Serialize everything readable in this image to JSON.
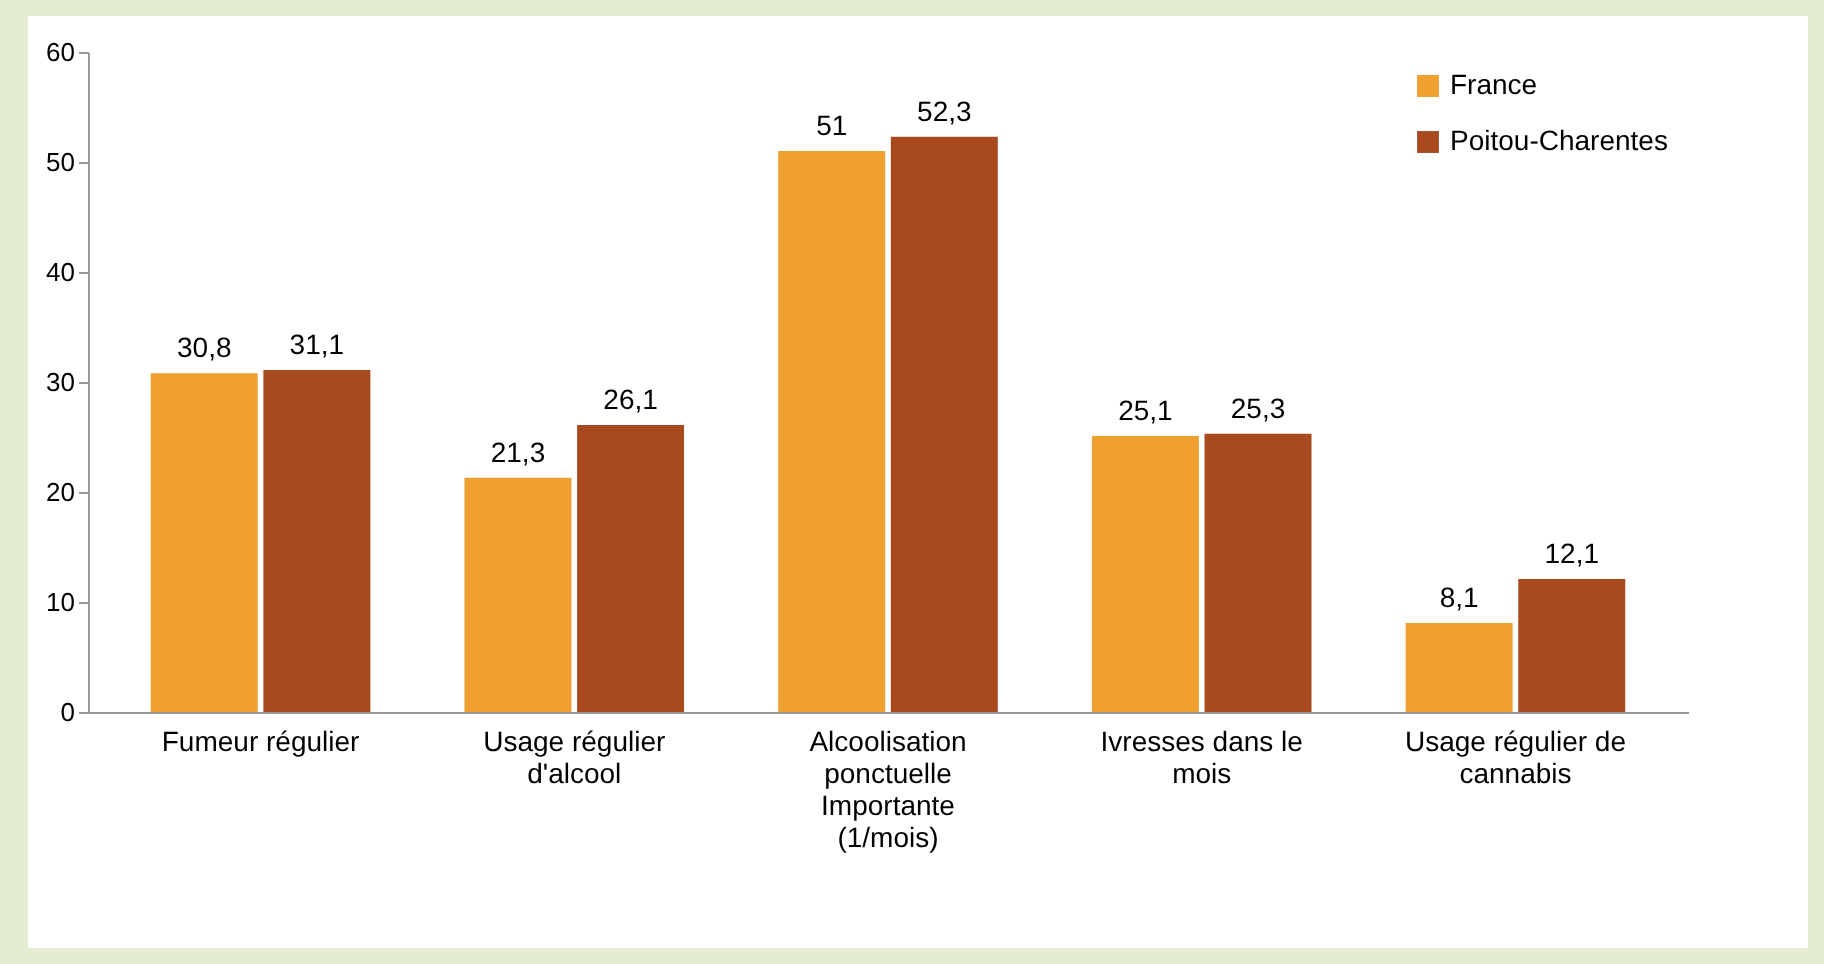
{
  "chart_data": {
    "type": "bar",
    "categories": [
      "Fumeur régulier",
      "Usage régulier d'alcool",
      "Alcoolisation ponctuelle Importante (1/mois)",
      "Ivresses dans le mois",
      "Usage régulier de cannabis"
    ],
    "series": [
      {
        "name": "France",
        "color": "#f0a030",
        "values": [
          30.8,
          21.3,
          51,
          25.1,
          8.1
        ],
        "value_labels": [
          "30,8",
          "21,3",
          "51",
          "25,1",
          "8,1"
        ]
      },
      {
        "name": "Poitou-Charentes",
        "color": "#a84a1e",
        "values": [
          31.1,
          26.1,
          52.3,
          25.3,
          12.1
        ],
        "value_labels": [
          "31,1",
          "26,1",
          "52,3",
          "25,3",
          "12,1"
        ]
      }
    ],
    "ylim": [
      0,
      60
    ],
    "yticks": [
      0,
      10,
      20,
      30,
      40,
      50,
      60
    ],
    "grid": false,
    "legend": "top right"
  }
}
